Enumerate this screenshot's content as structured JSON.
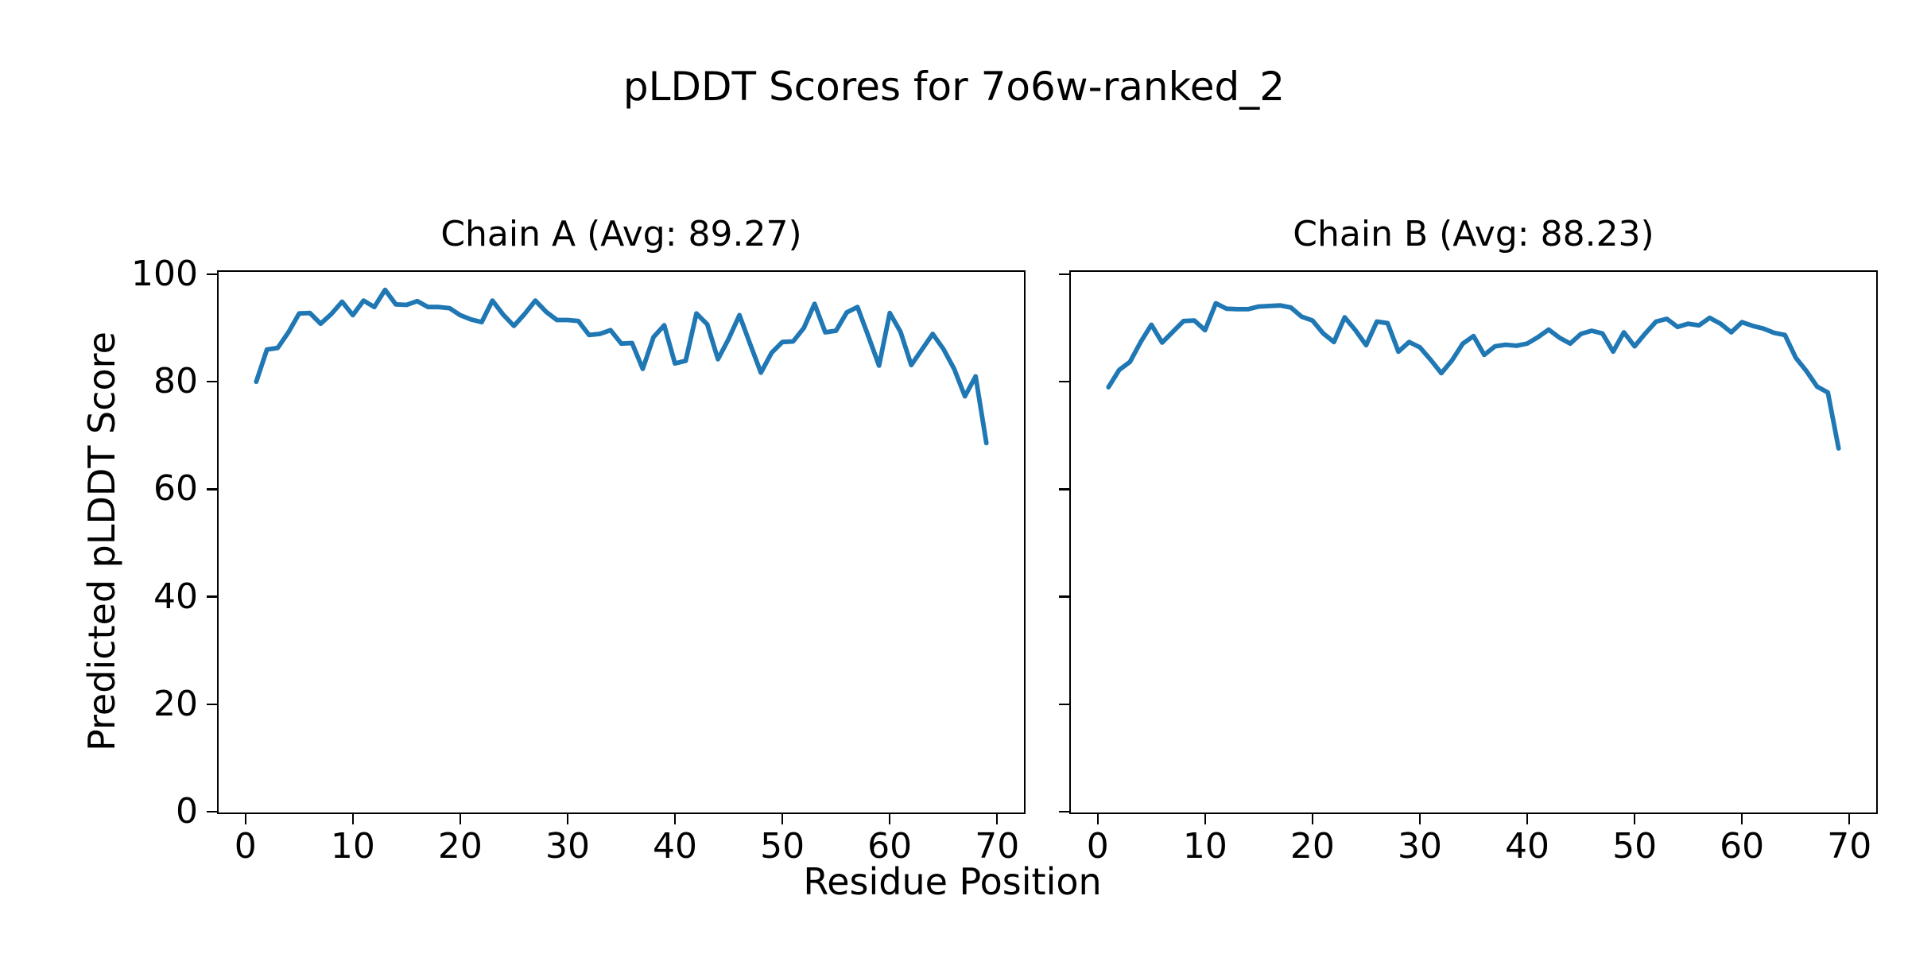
{
  "figure": {
    "title": "pLDDT Scores for 7o6w-ranked_2",
    "background_color": "#ffffff",
    "text_color": "#000000"
  },
  "chart_data": {
    "type": "line",
    "suptitle": "pLDDT Scores for 7o6w-ranked_2",
    "xlabel": "Residue Position",
    "ylabel": "Predicted pLDDT Score",
    "line_color": "#1f77b4",
    "xlim": [
      -2.5,
      72.5
    ],
    "ylim": [
      0,
      100
    ],
    "x_ticks": [
      0,
      10,
      20,
      30,
      40,
      50,
      60,
      70
    ],
    "y_ticks": [
      0,
      20,
      40,
      60,
      80,
      100
    ],
    "grid": false,
    "legend": "none",
    "x": [
      1,
      2,
      3,
      4,
      5,
      6,
      7,
      8,
      9,
      10,
      11,
      12,
      13,
      14,
      15,
      16,
      17,
      18,
      19,
      20,
      21,
      22,
      23,
      24,
      25,
      26,
      27,
      28,
      29,
      30,
      31,
      32,
      33,
      34,
      35,
      36,
      37,
      38,
      39,
      40,
      41,
      42,
      43,
      44,
      45,
      46,
      47,
      48,
      49,
      50,
      51,
      52,
      53,
      54,
      55,
      56,
      57,
      58,
      59,
      60,
      61,
      62,
      63,
      64,
      65,
      66,
      67,
      68,
      69
    ],
    "subplots": [
      {
        "chain": "A",
        "title": "Chain A (Avg: 89.27)",
        "avg": 89.27,
        "y_tick_labels_visible": true,
        "values": [
          80.0,
          86.0,
          86.3,
          89.2,
          92.7,
          92.8,
          90.8,
          92.6,
          94.9,
          92.4,
          95.1,
          93.9,
          97.1,
          94.4,
          94.3,
          95.0,
          93.9,
          93.9,
          93.7,
          92.4,
          91.6,
          91.1,
          95.1,
          92.5,
          90.4,
          92.6,
          95.1,
          93.0,
          91.5,
          91.5,
          91.3,
          88.7,
          88.9,
          89.6,
          87.1,
          87.2,
          82.4,
          88.3,
          90.5,
          83.4,
          83.9,
          92.7,
          90.7,
          84.2,
          88.0,
          92.4,
          87.0,
          81.7,
          85.4,
          87.4,
          87.5,
          90.0,
          94.5,
          89.2,
          89.5,
          92.9,
          93.9,
          88.5,
          83.0,
          92.8,
          89.3,
          83.1,
          86.0,
          88.9,
          86.1,
          82.4,
          77.3,
          81.0,
          68.6
        ]
      },
      {
        "chain": "B",
        "title": "Chain B (Avg: 88.23)",
        "avg": 88.23,
        "y_tick_labels_visible": false,
        "values": [
          79.0,
          82.2,
          83.7,
          87.4,
          90.6,
          87.3,
          89.3,
          91.3,
          91.4,
          89.6,
          94.6,
          93.6,
          93.5,
          93.5,
          94.0,
          94.1,
          94.2,
          93.8,
          92.1,
          91.4,
          89.0,
          87.4,
          92.0,
          89.6,
          86.8,
          91.2,
          90.9,
          85.6,
          87.4,
          86.4,
          84.1,
          81.6,
          84.0,
          87.1,
          88.5,
          85.0,
          86.6,
          86.9,
          86.7,
          87.1,
          88.3,
          89.7,
          88.2,
          87.1,
          88.9,
          89.5,
          89.0,
          85.6,
          89.2,
          86.6,
          89.0,
          91.2,
          91.7,
          90.2,
          90.8,
          90.5,
          91.9,
          90.8,
          89.2,
          91.1,
          90.4,
          89.9,
          89.1,
          88.7,
          84.5,
          82.0,
          79.1,
          78.0,
          67.6
        ]
      }
    ]
  }
}
